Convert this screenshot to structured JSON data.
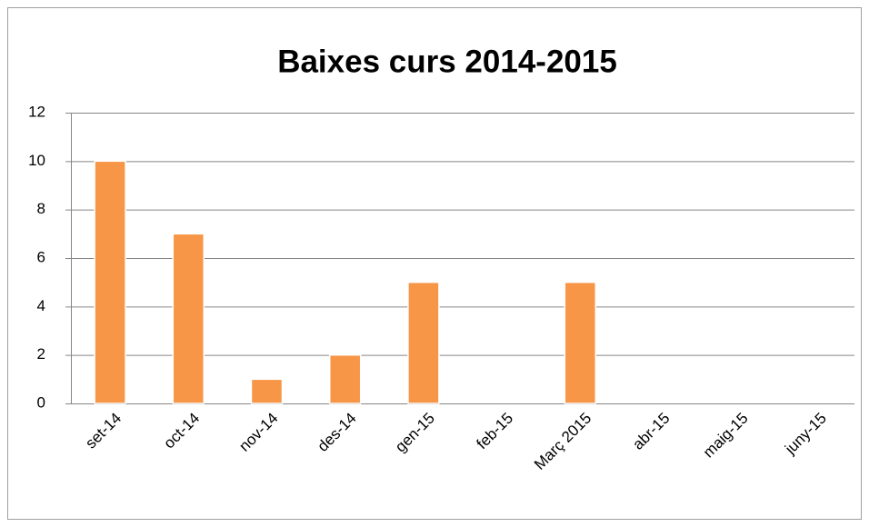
{
  "chart_data": {
    "type": "bar",
    "title": "Baixes curs 2014-2015",
    "categories": [
      "set-14",
      "oct-14",
      "nov-14",
      "des-14",
      "gen-15",
      "feb-15",
      "Març 2015",
      "abr-15",
      "maig-15",
      "juny-15"
    ],
    "values": [
      10,
      7,
      1,
      2,
      5,
      0,
      5,
      0,
      0,
      0
    ],
    "color": "#f79646",
    "ylim": [
      0,
      12
    ],
    "yticks": [
      0,
      2,
      4,
      6,
      8,
      10,
      12
    ],
    "grid": true
  }
}
